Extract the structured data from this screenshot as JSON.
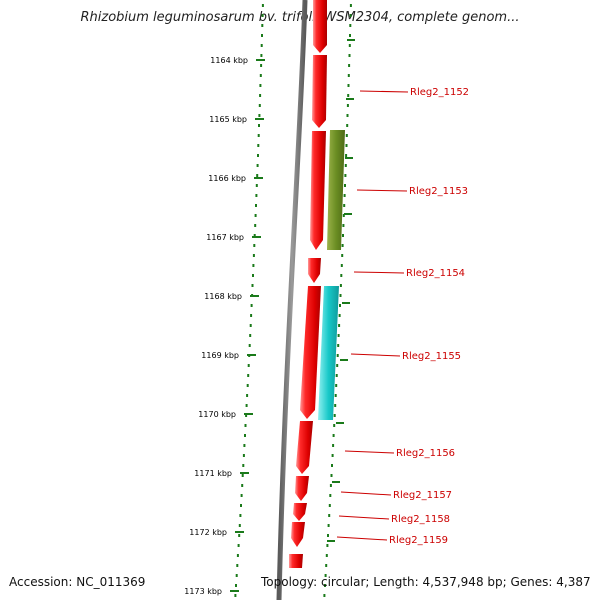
{
  "title": "Rhizobium leguminosarum bv. trifolii WSM2304, complete genom...",
  "colors": {
    "forward_gene": "#ee1111",
    "reverse_gene_green": "#6b8e23",
    "reverse_gene_cyan": "#17c8c8",
    "backbone": "#808080",
    "ticks": "#1a7a1a",
    "label": "#cc0000"
  },
  "kbp_ticks": [
    "1164 kbp",
    "1165 kbp",
    "1166 kbp",
    "1167 kbp",
    "1168 kbp",
    "1169 kbp",
    "1170 kbp",
    "1171 kbp",
    "1172 kbp",
    "1173 kbp"
  ],
  "gene_labels": [
    "Rleg2_1152",
    "Rleg2_1153",
    "Rleg2_1154",
    "Rleg2_1155",
    "Rleg2_1156",
    "Rleg2_1157",
    "Rleg2_1158",
    "Rleg2_1159"
  ],
  "footer": {
    "accession": "Accession: NC_011369",
    "summary": "Topology: circular; Length: 4,537,948 bp; Genes: 4,387"
  }
}
